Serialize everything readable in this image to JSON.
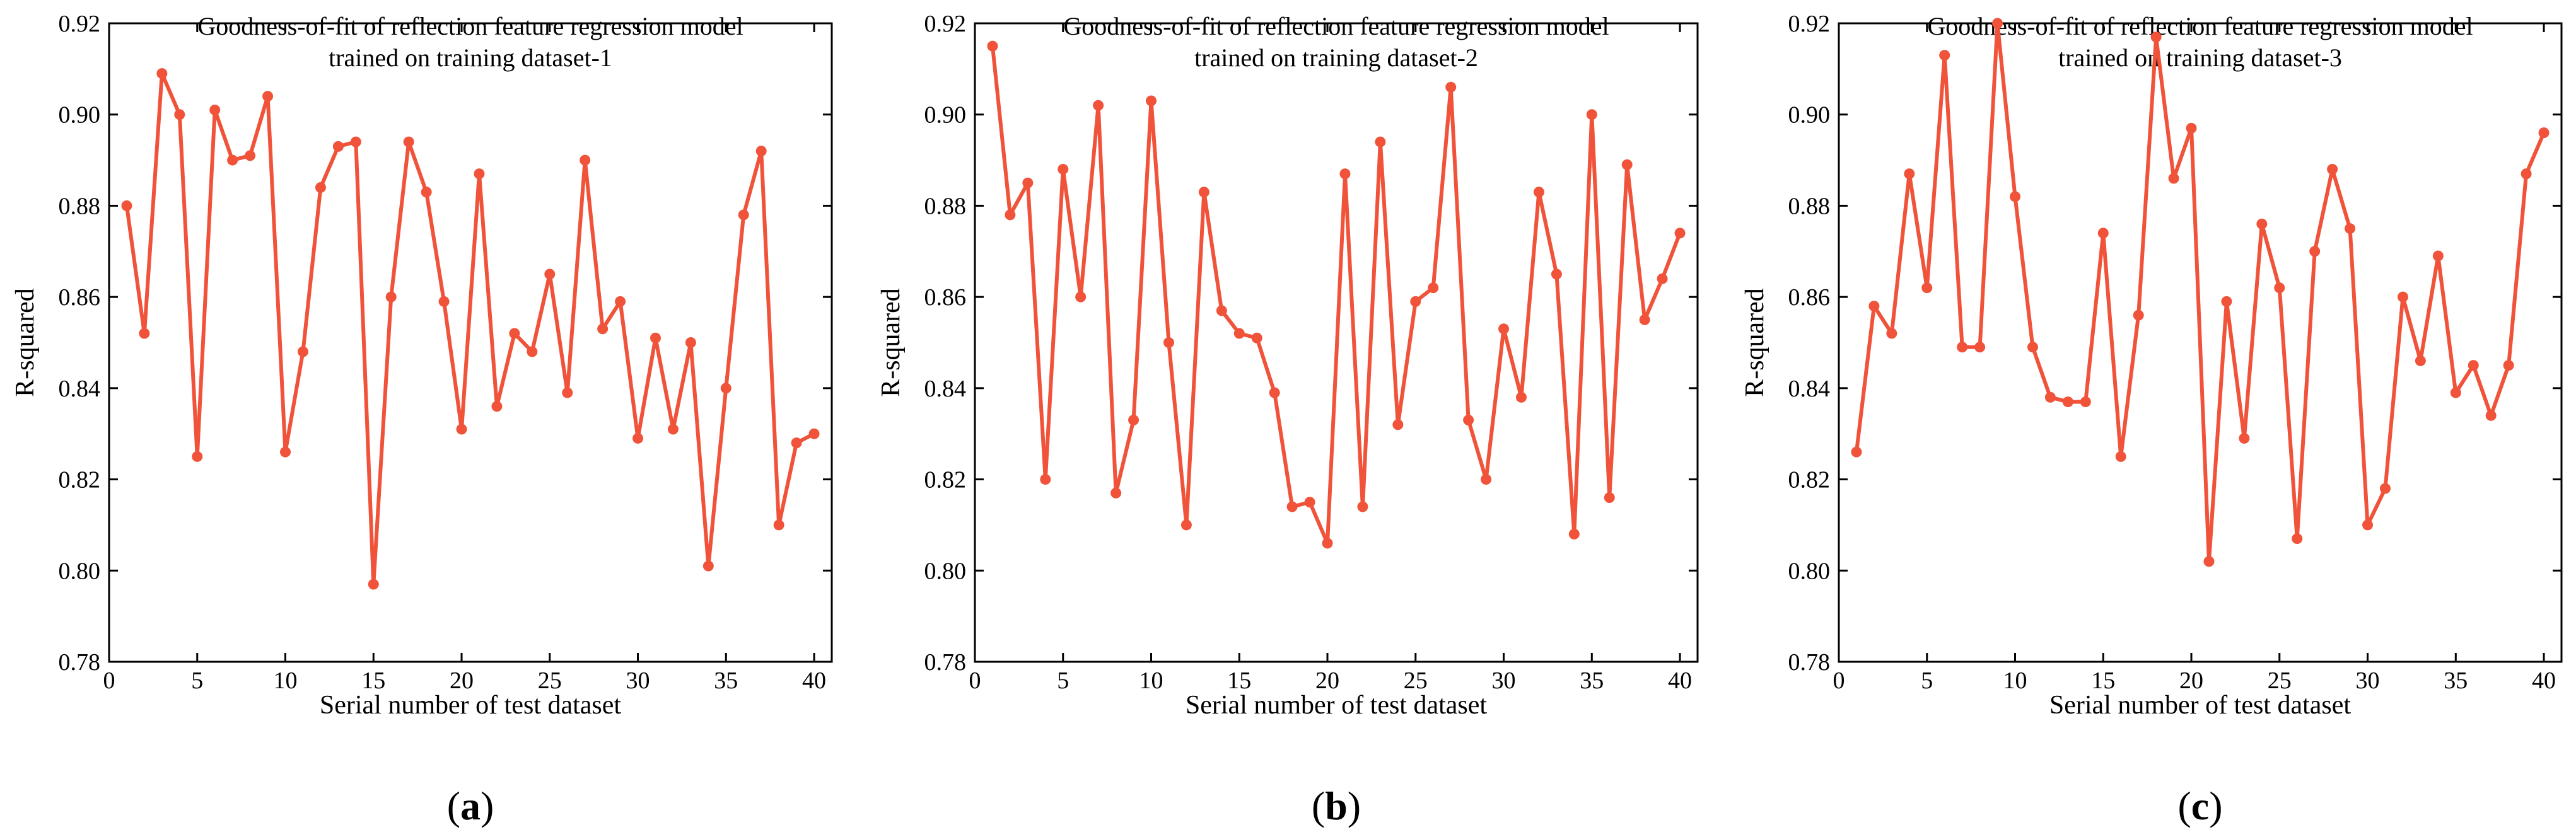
{
  "colors": {
    "series": "#f0533a",
    "axis": "#000000",
    "background": "#ffffff"
  },
  "chart_data": [
    {
      "type": "line",
      "panel_label": "a",
      "title": [
        "Goodness-of-fit of reflection feature regression model",
        "trained on training dataset-1"
      ],
      "xlabel": "Serial number of test dataset",
      "ylabel": "R-squared",
      "xlim": [
        0,
        41
      ],
      "ylim": [
        0.78,
        0.92
      ],
      "xticks": [
        0,
        5,
        10,
        15,
        20,
        25,
        30,
        35,
        40
      ],
      "yticks": [
        0.78,
        0.8,
        0.82,
        0.84,
        0.86,
        0.88,
        0.9,
        0.92
      ],
      "xtick_labels": [
        "0",
        "5",
        "10",
        "15",
        "20",
        "25",
        "30",
        "35",
        "40"
      ],
      "ytick_labels": [
        "0.78",
        "0.80",
        "0.82",
        "0.84",
        "0.86",
        "0.88",
        "0.90",
        "0.92"
      ],
      "x": [
        1,
        2,
        3,
        4,
        5,
        6,
        7,
        8,
        9,
        10,
        11,
        12,
        13,
        14,
        15,
        16,
        17,
        18,
        19,
        20,
        21,
        22,
        23,
        24,
        25,
        26,
        27,
        28,
        29,
        30,
        31,
        32,
        33,
        34,
        35,
        36,
        37,
        38,
        39,
        40
      ],
      "series": [
        {
          "name": "R-squared",
          "values": [
            0.88,
            0.852,
            0.909,
            0.9,
            0.825,
            0.901,
            0.89,
            0.891,
            0.904,
            0.826,
            0.848,
            0.884,
            0.893,
            0.894,
            0.797,
            0.86,
            0.894,
            0.883,
            0.859,
            0.831,
            0.887,
            0.836,
            0.852,
            0.848,
            0.865,
            0.839,
            0.89,
            0.853,
            0.859,
            0.829,
            0.851,
            0.831,
            0.85,
            0.801,
            0.84,
            0.878,
            0.892,
            0.81,
            0.828,
            0.83
          ]
        }
      ]
    },
    {
      "type": "line",
      "panel_label": "b",
      "title": [
        "Goodness-of-fit of reflection feature regression model",
        "trained on training dataset-2"
      ],
      "xlabel": "Serial number of test dataset",
      "ylabel": "R-squared",
      "xlim": [
        0,
        41
      ],
      "ylim": [
        0.78,
        0.92
      ],
      "xticks": [
        0,
        5,
        10,
        15,
        20,
        25,
        30,
        35,
        40
      ],
      "yticks": [
        0.78,
        0.8,
        0.82,
        0.84,
        0.86,
        0.88,
        0.9,
        0.92
      ],
      "xtick_labels": [
        "0",
        "5",
        "10",
        "15",
        "20",
        "25",
        "30",
        "35",
        "40"
      ],
      "ytick_labels": [
        "0.78",
        "0.80",
        "0.82",
        "0.84",
        "0.86",
        "0.88",
        "0.90",
        "0.92"
      ],
      "x": [
        1,
        2,
        3,
        4,
        5,
        6,
        7,
        8,
        9,
        10,
        11,
        12,
        13,
        14,
        15,
        16,
        17,
        18,
        19,
        20,
        21,
        22,
        23,
        24,
        25,
        26,
        27,
        28,
        29,
        30,
        31,
        32,
        33,
        34,
        35,
        36,
        37,
        38,
        39,
        40
      ],
      "series": [
        {
          "name": "R-squared",
          "values": [
            0.915,
            0.878,
            0.885,
            0.82,
            0.888,
            0.86,
            0.902,
            0.817,
            0.833,
            0.903,
            0.85,
            0.81,
            0.883,
            0.857,
            0.852,
            0.851,
            0.839,
            0.814,
            0.815,
            0.806,
            0.887,
            0.814,
            0.894,
            0.832,
            0.859,
            0.862,
            0.906,
            0.833,
            0.82,
            0.853,
            0.838,
            0.883,
            0.865,
            0.808,
            0.9,
            0.816,
            0.889,
            0.855,
            0.864,
            0.874
          ]
        }
      ]
    },
    {
      "type": "line",
      "panel_label": "c",
      "title": [
        "Goodness-of-fit of reflection feature regression model",
        "trained on training dataset-3"
      ],
      "xlabel": "Serial number of test dataset",
      "ylabel": "R-squared",
      "xlim": [
        0,
        41
      ],
      "ylim": [
        0.78,
        0.92
      ],
      "xticks": [
        0,
        5,
        10,
        15,
        20,
        25,
        30,
        35,
        40
      ],
      "yticks": [
        0.78,
        0.8,
        0.82,
        0.84,
        0.86,
        0.88,
        0.9,
        0.92
      ],
      "xtick_labels": [
        "0",
        "5",
        "10",
        "15",
        "20",
        "25",
        "30",
        "35",
        "40"
      ],
      "ytick_labels": [
        "0.78",
        "0.80",
        "0.82",
        "0.84",
        "0.86",
        "0.88",
        "0.90",
        "0.92"
      ],
      "x": [
        1,
        2,
        3,
        4,
        5,
        6,
        7,
        8,
        9,
        10,
        11,
        12,
        13,
        14,
        15,
        16,
        17,
        18,
        19,
        20,
        21,
        22,
        23,
        24,
        25,
        26,
        27,
        28,
        29,
        30,
        31,
        32,
        33,
        34,
        35,
        36,
        37,
        38,
        39,
        40
      ],
      "series": [
        {
          "name": "R-squared",
          "values": [
            0.826,
            0.858,
            0.852,
            0.887,
            0.862,
            0.913,
            0.849,
            0.849,
            0.92,
            0.882,
            0.849,
            0.838,
            0.837,
            0.837,
            0.874,
            0.825,
            0.856,
            0.917,
            0.886,
            0.897,
            0.802,
            0.859,
            0.829,
            0.876,
            0.862,
            0.807,
            0.87,
            0.888,
            0.875,
            0.81,
            0.818,
            0.86,
            0.846,
            0.869,
            0.839,
            0.845,
            0.834,
            0.845,
            0.887,
            0.896
          ]
        }
      ]
    }
  ]
}
